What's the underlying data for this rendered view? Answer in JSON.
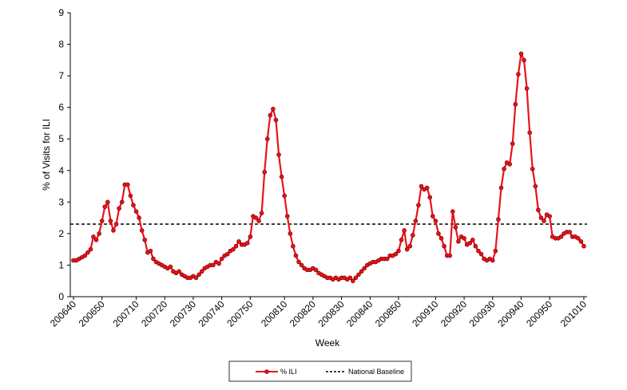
{
  "chart_data": {
    "type": "line",
    "y_label": "% of Visits for ILI",
    "x_label": "Week",
    "categories": [
      "200640",
      null,
      null,
      null,
      null,
      null,
      null,
      null,
      null,
      null,
      "200650",
      null,
      null,
      null,
      null,
      null,
      null,
      null,
      null,
      null,
      null,
      null,
      "200710",
      null,
      null,
      null,
      null,
      null,
      null,
      null,
      null,
      null,
      "200720",
      null,
      null,
      null,
      null,
      null,
      null,
      null,
      null,
      null,
      "200730",
      null,
      null,
      null,
      null,
      null,
      null,
      null,
      null,
      null,
      "200740",
      null,
      null,
      null,
      null,
      null,
      null,
      null,
      null,
      null,
      "200750",
      null,
      null,
      null,
      null,
      null,
      null,
      null,
      null,
      null,
      null,
      null,
      "200810",
      null,
      null,
      null,
      null,
      null,
      null,
      null,
      null,
      null,
      "200820",
      null,
      null,
      null,
      null,
      null,
      null,
      null,
      null,
      null,
      "200830",
      null,
      null,
      null,
      null,
      null,
      null,
      null,
      null,
      null,
      "200840",
      null,
      null,
      null,
      null,
      null,
      null,
      null,
      null,
      null,
      "200850",
      null,
      null,
      null,
      null,
      null,
      null,
      null,
      null,
      null,
      null,
      null,
      null,
      "200910",
      null,
      null,
      null,
      null,
      null,
      null,
      null,
      null,
      null,
      "200920",
      null,
      null,
      null,
      null,
      null,
      null,
      null,
      null,
      null,
      "200930",
      null,
      null,
      null,
      null,
      null,
      null,
      null,
      null,
      null,
      "200940",
      null,
      null,
      null,
      null,
      null,
      null,
      null,
      null,
      null,
      "200950",
      null,
      null,
      null,
      null,
      null,
      null,
      null,
      null,
      null,
      null,
      null,
      "201010"
    ],
    "series": [
      {
        "name": "% ILI",
        "color": "#e8141c",
        "values": [
          1.15,
          1.15,
          1.2,
          1.25,
          1.3,
          1.4,
          1.5,
          1.9,
          1.8,
          2.0,
          2.4,
          2.85,
          3.0,
          2.4,
          2.1,
          2.3,
          2.8,
          3.0,
          3.55,
          3.55,
          3.2,
          2.9,
          2.7,
          2.5,
          2.1,
          1.8,
          1.4,
          1.45,
          1.2,
          1.1,
          1.05,
          1.0,
          0.95,
          0.9,
          0.95,
          0.8,
          0.75,
          0.8,
          0.7,
          0.65,
          0.6,
          0.6,
          0.65,
          0.6,
          0.7,
          0.8,
          0.9,
          0.95,
          1.0,
          1.0,
          1.1,
          1.05,
          1.2,
          1.3,
          1.35,
          1.45,
          1.5,
          1.6,
          1.75,
          1.65,
          1.65,
          1.7,
          1.9,
          2.55,
          2.5,
          2.4,
          2.65,
          3.95,
          5.0,
          5.75,
          5.95,
          5.6,
          4.5,
          3.8,
          3.2,
          2.55,
          2.0,
          1.6,
          1.3,
          1.1,
          1.0,
          0.9,
          0.85,
          0.85,
          0.9,
          0.85,
          0.75,
          0.7,
          0.65,
          0.6,
          0.6,
          0.55,
          0.6,
          0.55,
          0.6,
          0.6,
          0.55,
          0.6,
          0.5,
          0.6,
          0.7,
          0.8,
          0.9,
          1.0,
          1.05,
          1.1,
          1.1,
          1.15,
          1.2,
          1.2,
          1.2,
          1.3,
          1.3,
          1.35,
          1.45,
          1.8,
          2.1,
          1.5,
          1.6,
          1.95,
          2.4,
          2.9,
          3.5,
          3.4,
          3.45,
          3.15,
          2.55,
          2.4,
          2.0,
          1.85,
          1.6,
          1.3,
          1.3,
          2.7,
          2.2,
          1.75,
          1.9,
          1.85,
          1.65,
          1.7,
          1.8,
          1.6,
          1.45,
          1.35,
          1.2,
          1.15,
          1.2,
          1.15,
          1.45,
          2.45,
          3.45,
          4.05,
          4.25,
          4.2,
          4.85,
          6.1,
          7.05,
          7.7,
          7.5,
          6.6,
          5.2,
          4.05,
          3.5,
          2.75,
          2.5,
          2.4,
          2.6,
          2.55,
          1.9,
          1.85,
          1.85,
          1.9,
          2.0,
          2.05,
          2.05,
          1.9,
          1.9,
          1.85,
          1.75,
          1.6
        ]
      }
    ],
    "baseline": {
      "name": "National Baseline",
      "value": 2.3,
      "color": "#000000"
    },
    "ylim": [
      0,
      9
    ],
    "yticks": [
      0,
      1,
      2,
      3,
      4,
      5,
      6,
      7,
      8,
      9
    ],
    "grid": false
  }
}
